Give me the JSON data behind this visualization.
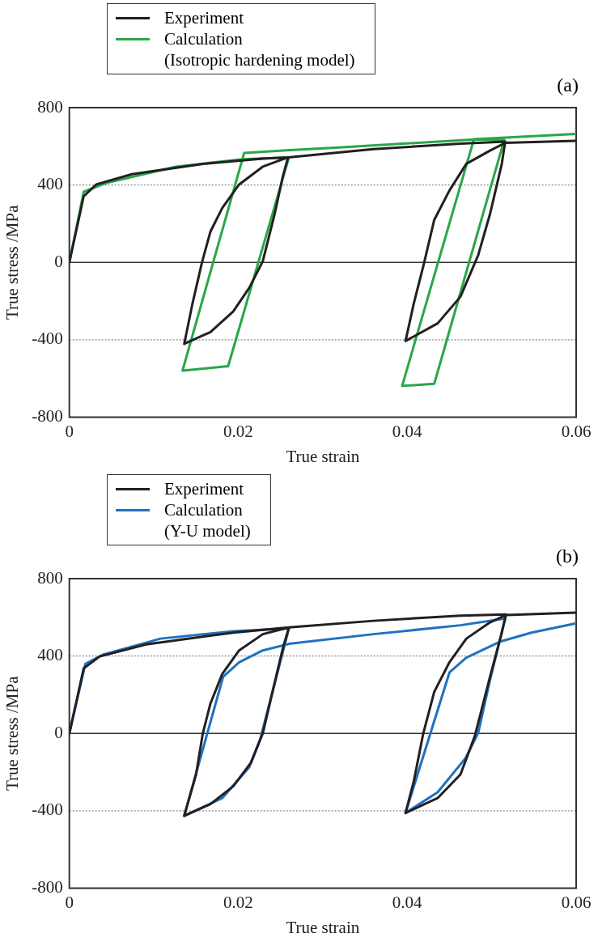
{
  "chart_data": [
    {
      "type": "line",
      "xlabel": "True strain",
      "ylabel": "True stress /MPa",
      "annotations": [
        "(a)"
      ],
      "xlim": [
        0,
        0.06
      ],
      "xticks": [
        0,
        0.02,
        0.04,
        0.06
      ],
      "ylim": [
        -800,
        800
      ],
      "yticks": [
        -800,
        -400,
        0,
        400,
        800
      ],
      "grid": "y",
      "legend": "top left",
      "marker": "none",
      "line_style": "solid",
      "series": [
        {
          "name": "Experiment",
          "color": "#231f20",
          "x": [
            0,
            0.0017,
            0.0032,
            0.0074,
            0.016,
            0.0229,
            0.0259,
            0.0253,
            0.0243,
            0.0229,
            0.0213,
            0.0194,
            0.0167,
            0.0136,
            0.0146,
            0.0157,
            0.0167,
            0.0181,
            0.0201,
            0.0229,
            0.0259,
            0.036,
            0.0463,
            0.0516,
            0.0512,
            0.0498,
            0.0484,
            0.0463,
            0.0436,
            0.0398,
            0.0408,
            0.042,
            0.0432,
            0.045,
            0.047,
            0.0498,
            0.0516,
            0.06
          ],
          "values": [
            0,
            342,
            403,
            456,
            510,
            537,
            543,
            449,
            250,
            6,
            -131,
            -253,
            -360,
            -421,
            -208,
            0,
            159,
            281,
            403,
            495,
            543,
            586,
            614,
            624,
            510,
            250,
            37,
            -177,
            -315,
            -406,
            -208,
            -2,
            220,
            372,
            510,
            578,
            618,
            629
          ]
        },
        {
          "name": "Calculation\n(Isotropic hardening model)",
          "color": "#2aa64a",
          "x": [
            0,
            0.0017,
            0.0043,
            0.0126,
            0.0205,
            0.026,
            0.0188,
            0.0134,
            0.0207,
            0.0257,
            0.0319,
            0.0477,
            0.0515,
            0.0432,
            0.0394,
            0.0479,
            0.06
          ],
          "values": [
            0,
            365,
            410,
            495,
            533,
            543,
            -536,
            -559,
            566,
            579,
            594,
            635,
            635,
            -627,
            -638,
            637,
            664
          ]
        }
      ]
    },
    {
      "type": "line",
      "xlabel": "True strain",
      "ylabel": "True stress /MPa",
      "annotations": [
        "(b)"
      ],
      "xlim": [
        0,
        0.06
      ],
      "xticks": [
        0,
        0.02,
        0.04,
        0.06
      ],
      "ylim": [
        -800,
        800
      ],
      "yticks": [
        -800,
        -400,
        0,
        400,
        800
      ],
      "grid": "y",
      "legend": "top left",
      "marker": "none",
      "line_style": "solid",
      "series": [
        {
          "name": "Experiment",
          "color": "#231f20",
          "x": [
            0,
            0.0017,
            0.0036,
            0.0091,
            0.0194,
            0.026,
            0.0253,
            0.0243,
            0.0229,
            0.0215,
            0.0194,
            0.0167,
            0.0136,
            0.015,
            0.0158,
            0.0167,
            0.0181,
            0.0201,
            0.0229,
            0.026,
            0.036,
            0.0463,
            0.0517,
            0.0511,
            0.0498,
            0.048,
            0.0463,
            0.0436,
            0.0398,
            0.0408,
            0.0419,
            0.0432,
            0.045,
            0.047,
            0.0498,
            0.0517,
            0.06
          ],
          "values": [
            0,
            337,
            398,
            460,
            521,
            548,
            444,
            261,
            0,
            -151,
            -273,
            -365,
            -426,
            -212,
            0,
            154,
            307,
            429,
            513,
            548,
            582,
            609,
            615,
            505,
            292,
            -14,
            -212,
            -334,
            -411,
            -243,
            0,
            215,
            368,
            490,
            574,
            612,
            624
          ]
        },
        {
          "name": "Calculation\n(Y-U model)",
          "color": "#1f72c0",
          "x": [
            0,
            0.0019,
            0.0039,
            0.0108,
            0.0194,
            0.026,
            0.0246,
            0.0226,
            0.0213,
            0.0181,
            0.0136,
            0.0182,
            0.0201,
            0.0229,
            0.026,
            0.036,
            0.0463,
            0.0516,
            0.0498,
            0.0484,
            0.0469,
            0.0436,
            0.0398,
            0.045,
            0.047,
            0.0511,
            0.0547,
            0.06
          ],
          "values": [
            0,
            360,
            406,
            490,
            528,
            543,
            307,
            -29,
            -174,
            -334,
            -426,
            292,
            368,
            429,
            463,
            513,
            559,
            594,
            276,
            2,
            -128,
            -304,
            -411,
            315,
            392,
            476,
            521,
            569
          ]
        }
      ]
    }
  ]
}
